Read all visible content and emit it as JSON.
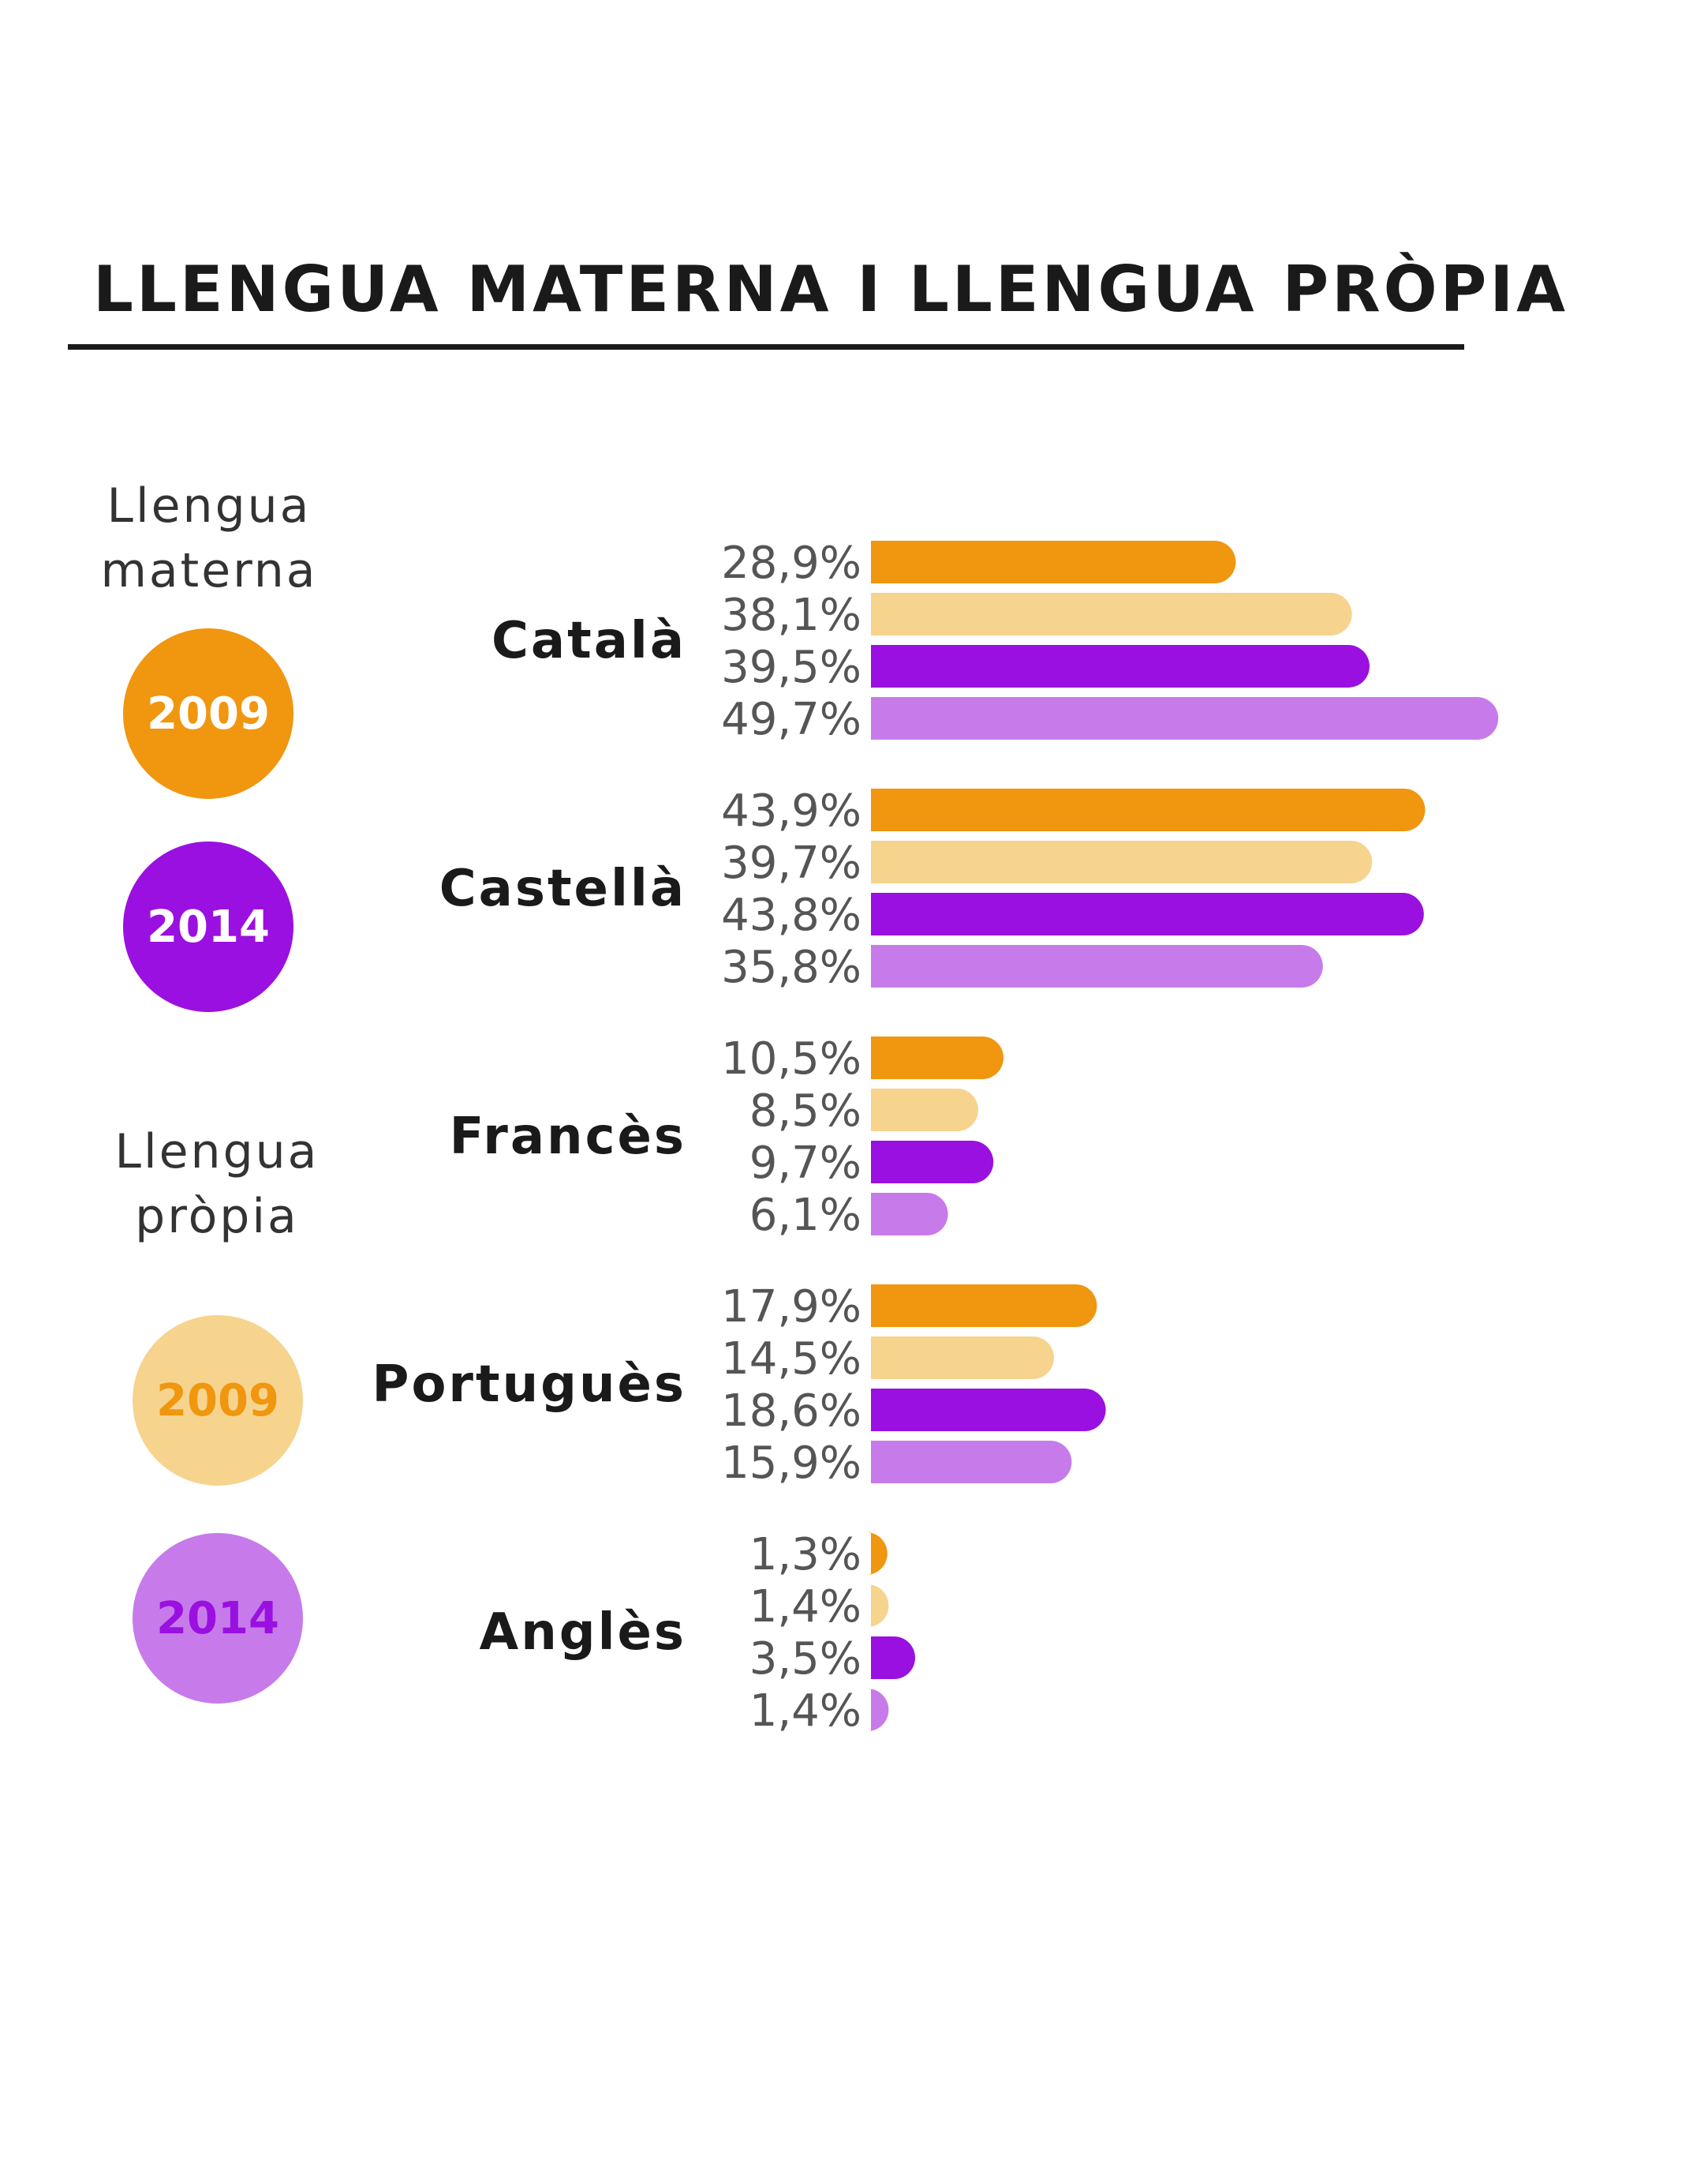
{
  "chart_data": {
    "type": "bar",
    "orientation": "horizontal",
    "title": "LLENGUA MATERNA I LLENGUA PRÒPIA",
    "categories": [
      "Català",
      "Castellà",
      "Francès",
      "Portuguès",
      "Anglès"
    ],
    "series": [
      {
        "group": "Llengua materna",
        "year": "2009",
        "color": "#f0960f",
        "values": [
          28.9,
          43.9,
          10.5,
          17.9,
          1.3
        ]
      },
      {
        "group": "Llengua pròpia",
        "year": "2009",
        "color": "#f6d48e",
        "values": [
          38.1,
          39.7,
          8.5,
          14.5,
          1.4
        ]
      },
      {
        "group": "Llengua materna",
        "year": "2014",
        "color": "#9a10e0",
        "values": [
          39.5,
          43.8,
          9.7,
          18.6,
          3.5
        ]
      },
      {
        "group": "Llengua pròpia",
        "year": "2014",
        "color": "#c77bea",
        "values": [
          49.7,
          35.8,
          6.1,
          15.9,
          1.4
        ]
      }
    ],
    "value_labels": [
      [
        "28,9%",
        "38,1%",
        "39,5%",
        "49,7%"
      ],
      [
        "43,9%",
        "39,7%",
        "43,8%",
        "35,8%"
      ],
      [
        "10,5%",
        "8,5%",
        "9,7%",
        "6,1%"
      ],
      [
        "17,9%",
        "14,5%",
        "18,6%",
        "15,9%"
      ],
      [
        "1,3%",
        "1,4%",
        "3,5%",
        "1,4%"
      ]
    ],
    "xlim": [
      0,
      50
    ],
    "grid": false,
    "legend_position": "left"
  },
  "legend": {
    "materna": {
      "heading_line1": "Llengua",
      "heading_line2": "materna",
      "year_2009": "2009",
      "year_2014": "2014"
    },
    "propia": {
      "heading_line1": "Llengua",
      "heading_line2": "pròpia",
      "year_2009": "2009",
      "year_2014": "2014"
    }
  }
}
